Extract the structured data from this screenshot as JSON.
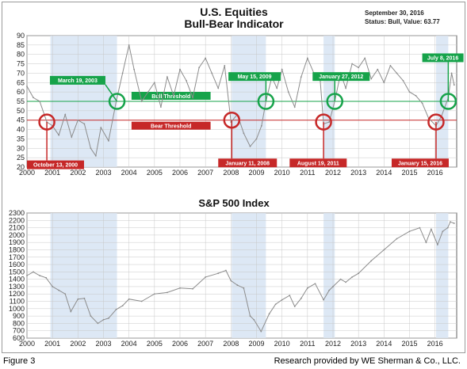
{
  "figure_label": "Figure 3",
  "credit": "Research provided by WE Sherman & Co., LLC.",
  "colors": {
    "bull": "#16a34a",
    "bear": "#c62828",
    "shade": "#dde8f5",
    "line": "#8c8c8c",
    "grid": "#c8c8c8"
  },
  "chart_data": [
    {
      "type": "line",
      "title": "U.S. Equities",
      "subtitle": "Bull-Bear Indicator",
      "date_text": "September 30, 2016",
      "status_text": "Status: Bull, Value: 63.77",
      "xlabel": "",
      "ylabel": "",
      "xlim": [
        2000,
        2016.85
      ],
      "ylim": [
        20,
        90
      ],
      "yticks": [
        20,
        25,
        30,
        35,
        40,
        45,
        50,
        55,
        60,
        65,
        70,
        75,
        80,
        85,
        90
      ],
      "xtick_labels": [
        "2000",
        "2001",
        "2002",
        "2003",
        "2004",
        "2005",
        "2006",
        "2007",
        "2008",
        "2009",
        "2010",
        "2011",
        "2012",
        "2013",
        "2014",
        "2015",
        "2016"
      ],
      "grid": true,
      "bull_threshold": {
        "label": "Bull Threshold",
        "value": 55
      },
      "bear_threshold": {
        "label": "Bear Threshold",
        "value": 45
      },
      "bear_periods": [
        [
          2000.92,
          2003.53
        ],
        [
          2008.03,
          2009.37
        ],
        [
          2011.63,
          2012.07
        ],
        [
          2016.04,
          2016.52
        ]
      ],
      "series": [
        {
          "x": [
            2000.0,
            2000.25,
            2000.5,
            2000.78,
            2001.0,
            2001.25,
            2001.5,
            2001.75,
            2002.0,
            2002.25,
            2002.5,
            2002.7,
            2002.9,
            2003.2,
            2003.5,
            2003.75,
            2004.0,
            2004.2,
            2004.5,
            2004.75,
            2005.0,
            2005.25,
            2005.5,
            2005.75,
            2006.0,
            2006.25,
            2006.5,
            2006.75,
            2007.0,
            2007.25,
            2007.5,
            2007.75,
            2008.0,
            2008.25,
            2008.5,
            2008.75,
            2009.0,
            2009.2,
            2009.37,
            2009.6,
            2009.8,
            2010.0,
            2010.25,
            2010.5,
            2010.75,
            2011.0,
            2011.25,
            2011.5,
            2011.63,
            2011.85,
            2012.07,
            2012.3,
            2012.5,
            2012.75,
            2013.0,
            2013.25,
            2013.5,
            2013.75,
            2014.0,
            2014.25,
            2014.5,
            2014.75,
            2015.0,
            2015.25,
            2015.5,
            2015.75,
            2016.04,
            2016.25,
            2016.52,
            2016.65,
            2016.75
          ],
          "values": [
            63,
            57,
            55,
            44,
            42,
            37,
            48,
            36,
            45,
            43,
            30,
            26,
            41,
            34,
            55,
            70,
            85,
            72,
            55,
            60,
            65,
            52,
            68,
            58,
            72,
            66,
            57,
            73,
            78,
            70,
            62,
            74,
            44,
            48,
            38,
            31,
            35,
            42,
            55,
            68,
            62,
            72,
            60,
            52,
            68,
            78,
            70,
            66,
            43,
            44,
            55,
            70,
            62,
            75,
            73,
            78,
            67,
            72,
            65,
            74,
            70,
            66,
            60,
            58,
            54,
            46,
            42,
            47,
            57,
            70,
            63.77
          ]
        }
      ],
      "annotations": [
        {
          "label": "October 13, 2000",
          "x": 2000.78,
          "y": 44,
          "type": "bear"
        },
        {
          "label": "March 19, 2003",
          "x": 2003.53,
          "y": 55,
          "type": "bull"
        },
        {
          "label": "January 11, 2008",
          "x": 2008.03,
          "y": 45,
          "type": "bear"
        },
        {
          "label": "May 15, 2009",
          "x": 2009.37,
          "y": 55,
          "type": "bull"
        },
        {
          "label": "August 19, 2011",
          "x": 2011.63,
          "y": 44,
          "type": "bear"
        },
        {
          "label": "January 27, 2012",
          "x": 2012.07,
          "y": 55,
          "type": "bull"
        },
        {
          "label": "January 15, 2016",
          "x": 2016.04,
          "y": 44,
          "type": "bear"
        },
        {
          "label": "July 8, 2016",
          "x": 2016.52,
          "y": 55,
          "type": "bull"
        }
      ]
    },
    {
      "type": "line",
      "title": "S&P 500 Index",
      "xlabel": "",
      "ylabel": "",
      "xlim": [
        2000,
        2016.85
      ],
      "ylim": [
        600,
        2300
      ],
      "yticks": [
        600,
        700,
        800,
        900,
        1000,
        1100,
        1200,
        1300,
        1400,
        1500,
        1600,
        1700,
        1800,
        1900,
        2000,
        2100,
        2200,
        2300
      ],
      "xtick_labels": [
        "2000",
        "2001",
        "2002",
        "2003",
        "2004",
        "2005",
        "2006",
        "2007",
        "2008",
        "2009",
        "2010",
        "2011",
        "2012",
        "2013",
        "2014",
        "2015",
        "2016"
      ],
      "grid": true,
      "series": [
        {
          "x": [
            2000.0,
            2000.25,
            2000.5,
            2000.75,
            2001.0,
            2001.25,
            2001.5,
            2001.72,
            2002.0,
            2002.25,
            2002.5,
            2002.78,
            2003.0,
            2003.2,
            2003.5,
            2003.75,
            2004.0,
            2004.5,
            2005.0,
            2005.5,
            2006.0,
            2006.5,
            2007.0,
            2007.5,
            2007.8,
            2008.0,
            2008.25,
            2008.5,
            2008.75,
            2008.9,
            2009.18,
            2009.5,
            2009.75,
            2010.0,
            2010.3,
            2010.5,
            2010.75,
            2011.0,
            2011.3,
            2011.63,
            2011.85,
            2012.0,
            2012.3,
            2012.5,
            2012.75,
            2013.0,
            2013.5,
            2014.0,
            2014.5,
            2015.0,
            2015.4,
            2015.65,
            2015.85,
            2016.1,
            2016.3,
            2016.5,
            2016.6,
            2016.75
          ],
          "values": [
            1450,
            1500,
            1450,
            1420,
            1300,
            1250,
            1200,
            960,
            1130,
            1140,
            900,
            800,
            850,
            870,
            990,
            1040,
            1130,
            1100,
            1200,
            1220,
            1280,
            1270,
            1430,
            1480,
            1520,
            1380,
            1320,
            1280,
            900,
            850,
            690,
            930,
            1060,
            1120,
            1180,
            1030,
            1140,
            1280,
            1340,
            1120,
            1250,
            1300,
            1400,
            1360,
            1430,
            1480,
            1650,
            1800,
            1950,
            2050,
            2100,
            1900,
            2080,
            1870,
            2050,
            2100,
            2180,
            2160
          ]
        }
      ],
      "bear_periods": [
        [
          2000.92,
          2003.53
        ],
        [
          2008.03,
          2009.37
        ],
        [
          2011.63,
          2012.07
        ],
        [
          2016.04,
          2016.52
        ]
      ]
    }
  ]
}
